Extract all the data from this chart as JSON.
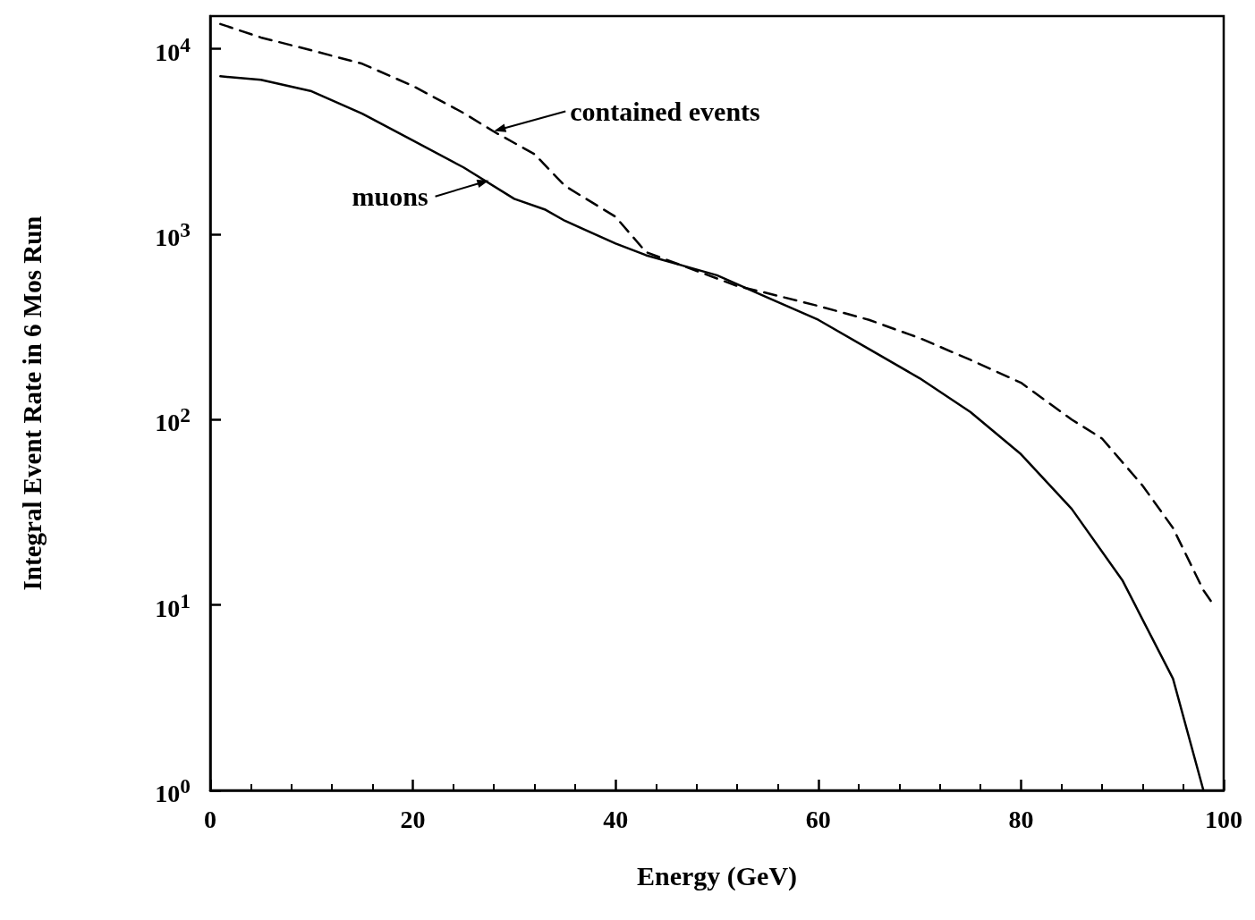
{
  "chart_data": {
    "type": "line",
    "xlabel": "Energy (GeV)",
    "ylabel": "Integral Event Rate in 6 Mos Run",
    "log": "y",
    "grid": false,
    "marker": "none",
    "xlim": [
      0,
      100
    ],
    "xticks": [
      0,
      20,
      40,
      60,
      80,
      100
    ],
    "ylim": [
      1,
      15000
    ],
    "yticks": [
      {
        "value": 1,
        "label": "10$^{0}$"
      },
      {
        "value": 10,
        "label": "10$^{1}$"
      },
      {
        "value": 100,
        "label": "10$^{2}$"
      },
      {
        "value": 1000,
        "label": "10$^{3}$"
      },
      {
        "value": 10000,
        "label": "10$^{4}$"
      }
    ],
    "series": [
      {
        "color": "#000000",
        "line_style": "solid",
        "x": [
          1,
          5,
          10,
          15,
          20,
          25,
          30,
          33,
          35,
          40,
          43,
          50,
          55,
          60,
          65,
          70,
          75,
          80,
          85,
          90,
          95,
          98
        ],
        "values": [
          7100,
          6800,
          5900,
          4470,
          3200,
          2290,
          1550,
          1360,
          1180,
          890,
          770,
          600,
          455,
          345,
          240,
          167,
          110,
          65,
          33,
          13.6,
          4,
          1
        ]
      },
      {
        "color": "#000000",
        "line_style": "dashed",
        "x": [
          1,
          5,
          10,
          15,
          20,
          25,
          28,
          32,
          35,
          40,
          43,
          52,
          55,
          60,
          65,
          70,
          75,
          80,
          85,
          88,
          92,
          95,
          98,
          99
        ],
        "values": [
          13600,
          11500,
          9800,
          8300,
          6300,
          4500,
          3570,
          2700,
          1820,
          1240,
          800,
          525,
          480,
          410,
          345,
          275,
          210,
          158,
          100,
          79,
          44,
          26,
          12,
          10
        ]
      }
    ],
    "annotations": [
      {
        "text": "contained events",
        "x": 28,
        "y": 3600
      },
      {
        "text": "muons",
        "x": 27.5,
        "y": 1950
      }
    ]
  }
}
